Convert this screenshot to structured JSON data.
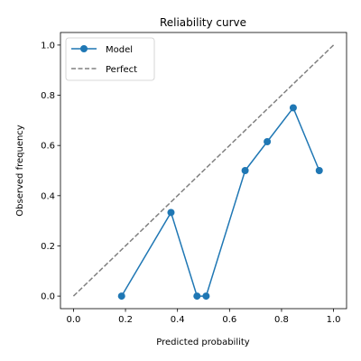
{
  "chart_data": {
    "type": "line",
    "title": "Reliability curve",
    "xlabel": "Predicted probability",
    "ylabel": "Observed frequency",
    "xlim": [
      -0.05,
      1.05
    ],
    "ylim": [
      -0.05,
      1.05
    ],
    "xticks": [
      "0.0",
      "0.2",
      "0.4",
      "0.6",
      "0.8",
      "1.0"
    ],
    "yticks": [
      "0.0",
      "0.2",
      "0.4",
      "0.6",
      "0.8",
      "1.0"
    ],
    "grid": false,
    "legend_position": "top-left",
    "series": [
      {
        "name": "Model",
        "color": "#1f77b4",
        "style": "solid",
        "marker": "circle",
        "x": [
          0.185,
          0.375,
          0.475,
          0.51,
          0.66,
          0.745,
          0.845,
          0.945
        ],
        "y": [
          0.0,
          0.333,
          0.0,
          0.0,
          0.5,
          0.615,
          0.75,
          0.5
        ]
      },
      {
        "name": "Perfect",
        "color": "#808080",
        "style": "dashed",
        "marker": "none",
        "x": [
          0.0,
          1.0
        ],
        "y": [
          0.0,
          1.0
        ]
      }
    ]
  }
}
